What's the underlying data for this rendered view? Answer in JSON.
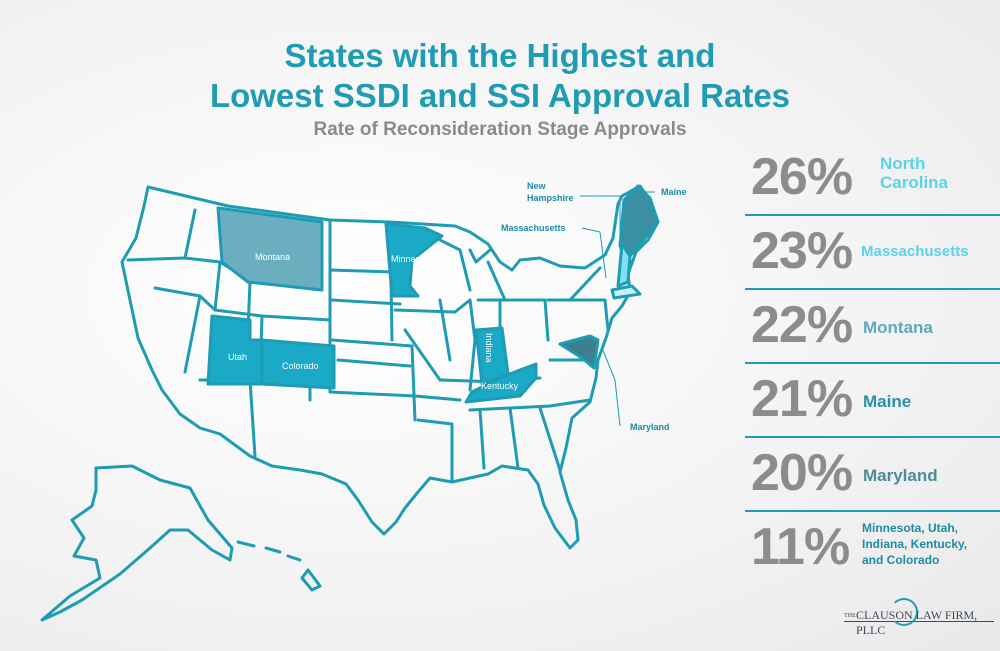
{
  "title_line1": "States with the Highest and",
  "title_line2": "Lowest SSDI and SSI Approval Rates",
  "subtitle": "Rate of Reconsideration Stage Approvals",
  "map_labels": {
    "montana": "Montana",
    "minnesota": "Minnesota",
    "utah": "Utah",
    "colorado": "Colorado",
    "indiana": "Indiana",
    "kentucky": "Kentucky"
  },
  "callouts": {
    "new_hampshire_1": "New",
    "new_hampshire_2": "Hampshire",
    "maine": "Maine",
    "massachusetts": "Massachusetts",
    "maryland": "Maryland"
  },
  "stats": [
    {
      "pct": "26%",
      "state": "North Carolina"
    },
    {
      "pct": "23%",
      "state": "Massachusetts"
    },
    {
      "pct": "22%",
      "state": "Montana"
    },
    {
      "pct": "21%",
      "state": "Maine"
    },
    {
      "pct": "20%",
      "state": "Maryland"
    },
    {
      "pct": "11%",
      "state": "Minnesota, Utah, Indiana, Kentucky, and Colorado"
    }
  ],
  "logo": {
    "the": "THE",
    "name": "CLAUSON LAW FIRM, PLLC"
  },
  "colors": {
    "teal": "#1d9cb3",
    "light_blue": "#5ad3ee",
    "montana_fill": "#6aaec0",
    "maine_fill": "#3a8fa3",
    "maryland_fill": "#3e7f8f",
    "gray_text": "#8c8c8c"
  }
}
